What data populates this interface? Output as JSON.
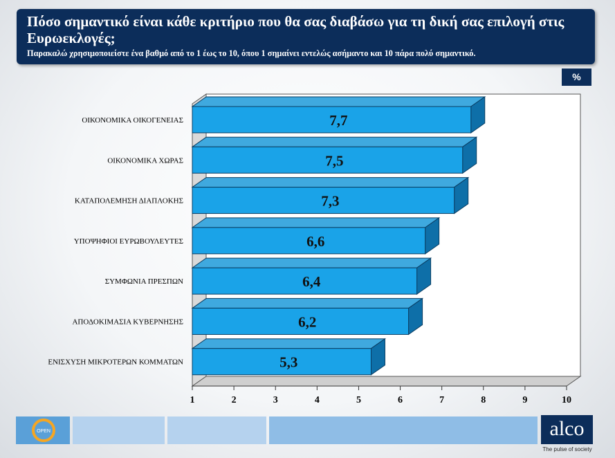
{
  "header": {
    "title": "Πόσο σημαντικό είναι κάθε κριτήριο που θα σας διαβάσω για τη δική σας επιλογή στις Ευρωεκλογές;",
    "subtitle": "Παρακαλώ χρησιμοποιείστε ένα βαθμό από το 1 έως το 10, όπου 1 σημαίνει εντελώς ασήμαντο και 10 πάρα πολύ σημαντικό."
  },
  "unit_badge": "%",
  "chart_data": {
    "type": "bar",
    "orientation": "horizontal",
    "categories": [
      "ΟΙΚΟΝΟΜΙΚΑ ΟΙΚΟΓΕΝΕΙΑΣ",
      "ΟΙΚΟΝΟΜΙΚΑ ΧΩΡΑΣ",
      "ΚΑΤΑΠΟΛΕΜΗΣΗ ΔΙΑΠΛΟΚΗΣ",
      "ΥΠΟΨΗΦΙΟΙ ΕΥΡΩΒΟΥΛΕΥΤΕΣ",
      "ΣΥΜΦΩΝΙΑ ΠΡΕΣΠΩΝ",
      "ΑΠΟΔΟΚΙΜΑΣΙΑ ΚΥΒΕΡΝΗΣΗΣ",
      "ΕΝΙΣΧΥΣΗ ΜΙΚΡΟΤΕΡΩΝ ΚΟΜΜΑΤΩΝ"
    ],
    "values": [
      7.7,
      7.5,
      7.3,
      6.6,
      6.4,
      6.2,
      5.3
    ],
    "value_labels": [
      "7,7",
      "7,5",
      "7,3",
      "6,6",
      "6,4",
      "6,2",
      "5,3"
    ],
    "xlim": [
      1,
      10
    ],
    "xticks": [
      "1",
      "2",
      "3",
      "4",
      "5",
      "6",
      "7",
      "8",
      "9",
      "10"
    ],
    "bar_color": "#1aa3e8",
    "bar_side_color": "#0e6fa8",
    "bar_top_color": "#3fa9df"
  },
  "footer": {
    "open_logo": "OPEN",
    "alco_logo": "alco",
    "alco_tagline": "The pulse of society"
  }
}
